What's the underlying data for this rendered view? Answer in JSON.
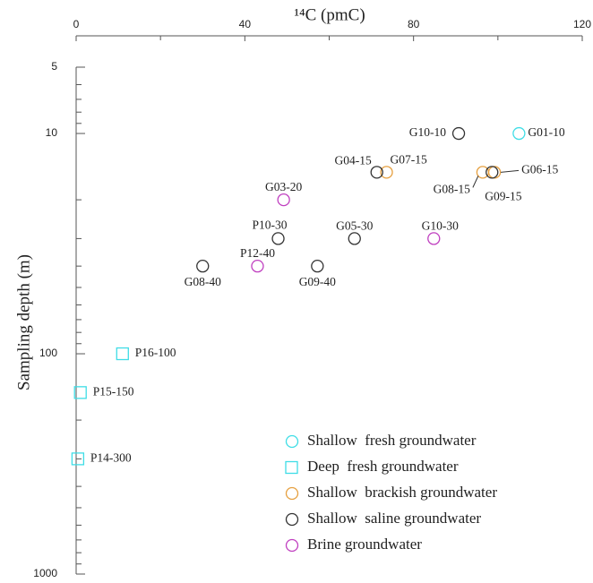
{
  "chart_data": {
    "type": "scatter",
    "x_label": "¹⁴C (pmC)",
    "y_label": "Sampling depth (m)",
    "xlim": [
      0,
      120
    ],
    "xticks": [
      0,
      40,
      80,
      120
    ],
    "xminorticks": [
      20,
      60,
      100
    ],
    "ylim": [
      5,
      1000
    ],
    "yticks": [
      5,
      10,
      100,
      1000
    ],
    "yminorticks": [
      6,
      7,
      8,
      9,
      20,
      30,
      40,
      50,
      60,
      70,
      80,
      90,
      200,
      300,
      400,
      500,
      600,
      700,
      800,
      900
    ],
    "y_log": true,
    "y_inverted": true,
    "series": [
      {
        "name": "Shallow  fresh groundwater",
        "color": "#3fdde6",
        "marker": "circle",
        "labels": [
          "G01-10"
        ],
        "x": [
          105
        ],
        "values": [
          10
        ]
      },
      {
        "name": "Deep  fresh groundwater",
        "color": "#3fdde6",
        "marker": "square",
        "labels": [
          "P16-100",
          "P15-150",
          "P14-300"
        ],
        "x": [
          11,
          1,
          0.4
        ],
        "values": [
          100,
          150,
          300
        ]
      },
      {
        "name": "Shallow  brackish groundwater",
        "color": "#e6a040",
        "marker": "circle",
        "labels": [
          "G07-15",
          "G08-15",
          "G06-15"
        ],
        "x": [
          73.6,
          96.4,
          99.2
        ],
        "values": [
          15,
          15,
          15
        ]
      },
      {
        "name": "Shallow  saline groundwater",
        "color": "#333333",
        "marker": "circle",
        "labels": [
          "G10-10",
          "G04-15",
          "G09-15",
          "P10-30",
          "G05-30",
          "G08-40",
          "G09-40"
        ],
        "x": [
          90.7,
          71.3,
          98.6,
          47.9,
          66,
          30,
          57.2
        ],
        "values": [
          10,
          15,
          15,
          30,
          30,
          40,
          40
        ]
      },
      {
        "name": "Brine groundwater",
        "color": "#c040c0",
        "marker": "circle",
        "labels": [
          "G03-20",
          "G10-30",
          "P12-40"
        ],
        "x": [
          49.2,
          84.8,
          43
        ],
        "values": [
          20,
          30,
          40
        ]
      }
    ]
  }
}
